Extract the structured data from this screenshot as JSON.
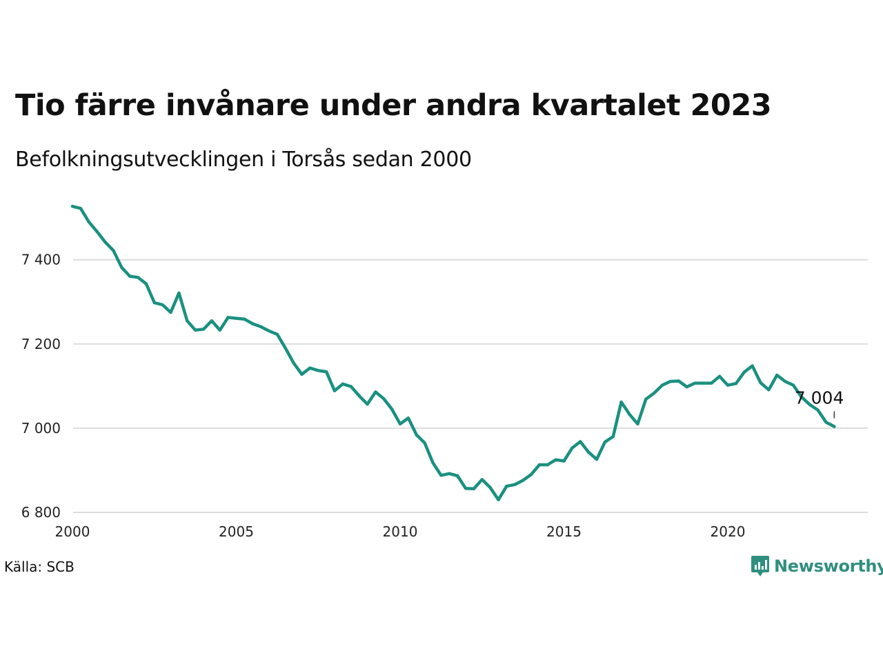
{
  "header": {
    "title": "Tio färre invånare under andra kvartalet 2023",
    "subtitle": "Befolkningsutvecklingen i Torsås sedan 2000"
  },
  "footer": {
    "source": "Källa: SCB",
    "brand": "Newsworthy"
  },
  "colors": {
    "line": "#1a9080",
    "grid": "#dcdcdc",
    "brand": "#2f8f7f"
  },
  "chart_data": {
    "type": "line",
    "title": "Tio färre invånare under andra kvartalet 2023",
    "subtitle": "Befolkningsutvecklingen i Torsås sedan 2000",
    "xlabel": "",
    "ylabel": "",
    "xlim": [
      2000,
      2024
    ],
    "ylim": [
      6800,
      7560
    ],
    "x_ticks": [
      2000,
      2005,
      2010,
      2015,
      2020
    ],
    "x_tick_labels": [
      "2000",
      "2005",
      "2010",
      "2015",
      "2020"
    ],
    "y_ticks": [
      6800,
      7000,
      7200,
      7400
    ],
    "y_tick_labels": [
      "6 800",
      "7 000",
      "7 200",
      "7 400"
    ],
    "grid": "horizontal",
    "annotation": {
      "x": 2023.25,
      "y": 7004,
      "label": "7 004"
    },
    "series": [
      {
        "x": [
          2000.0,
          2000.25,
          2000.5,
          2000.75,
          2001.0,
          2001.25,
          2001.5,
          2001.75,
          2002.0,
          2002.25,
          2002.5,
          2002.75,
          2003.0,
          2003.25,
          2003.5,
          2003.75,
          2004.0,
          2004.25,
          2004.5,
          2004.75,
          2005.0,
          2005.25,
          2005.5,
          2005.75,
          2006.0,
          2006.25,
          2006.5,
          2006.75,
          2007.0,
          2007.25,
          2007.5,
          2007.75,
          2008.0,
          2008.25,
          2008.5,
          2008.75,
          2009.0,
          2009.25,
          2009.5,
          2009.75,
          2010.0,
          2010.25,
          2010.5,
          2010.75,
          2011.0,
          2011.25,
          2011.5,
          2011.75,
          2012.0,
          2012.25,
          2012.5,
          2012.75,
          2013.0,
          2013.25,
          2013.5,
          2013.75,
          2014.0,
          2014.25,
          2014.5,
          2014.75,
          2015.0,
          2015.25,
          2015.5,
          2015.75,
          2016.0,
          2016.25,
          2016.5,
          2016.75,
          2017.0,
          2017.25,
          2017.5,
          2017.75,
          2018.0,
          2018.25,
          2018.5,
          2018.75,
          2019.0,
          2019.25,
          2019.5,
          2019.75,
          2020.0,
          2020.25,
          2020.5,
          2020.75,
          2021.0,
          2021.25,
          2021.5,
          2021.75,
          2022.0,
          2022.25,
          2022.5,
          2022.75,
          2023.0,
          2023.25
        ],
        "values": [
          7527,
          7522,
          7490,
          7467,
          7442,
          7422,
          7382,
          7361,
          7358,
          7343,
          7298,
          7293,
          7275,
          7321,
          7255,
          7233,
          7235,
          7255,
          7233,
          7263,
          7261,
          7259,
          7248,
          7241,
          7231,
          7223,
          7190,
          7155,
          7128,
          7143,
          7137,
          7134,
          7089,
          7105,
          7099,
          7077,
          7057,
          7086,
          7070,
          7045,
          7010,
          7024,
          6984,
          6965,
          6918,
          6888,
          6892,
          6887,
          6857,
          6856,
          6878,
          6859,
          6830,
          6862,
          6866,
          6876,
          6890,
          6913,
          6913,
          6925,
          6922,
          6953,
          6968,
          6943,
          6926,
          6967,
          6980,
          7062,
          7033,
          7010,
          7069,
          7083,
          7102,
          7111,
          7112,
          7098,
          7107,
          7107,
          7107,
          7123,
          7102,
          7106,
          7133,
          7148,
          7108,
          7091,
          7126,
          7111,
          7102,
          7074,
          7056,
          7043,
          7014,
          7004
        ]
      }
    ]
  }
}
